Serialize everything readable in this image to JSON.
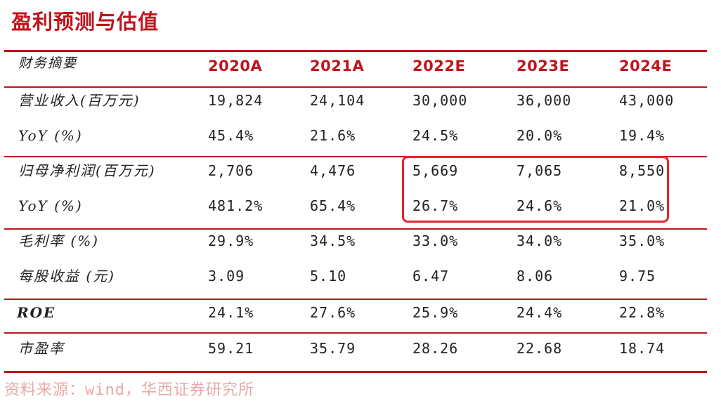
{
  "title": "盈利预测与估值",
  "header": {
    "label": "财务摘要",
    "years": [
      "2020A",
      "2021A",
      "2022E",
      "2023E",
      "2024E"
    ]
  },
  "rows": [
    {
      "label": "营业收入(百万元)",
      "values": [
        "19,824",
        "24,104",
        "30,000",
        "36,000",
        "43,000"
      ]
    },
    {
      "label": "YoY (%)",
      "values": [
        "45.4%",
        "21.6%",
        "24.5%",
        "20.0%",
        "19.4%"
      ]
    },
    {
      "label": "归母净利润(百万元)",
      "values": [
        "2,706",
        "4,476",
        "5,669",
        "7,065",
        "8,550"
      ]
    },
    {
      "label": "YoY (%)",
      "values": [
        "481.2%",
        "65.4%",
        "26.7%",
        "24.6%",
        "21.0%"
      ]
    },
    {
      "label": "毛利率 (%)",
      "values": [
        "29.9%",
        "34.5%",
        "33.0%",
        "34.0%",
        "35.0%"
      ]
    },
    {
      "label": "每股收益 (元)",
      "values": [
        "3.09",
        "5.10",
        "6.47",
        "8.06",
        "9.75"
      ]
    },
    {
      "label": "ROE",
      "values": [
        "24.1%",
        "27.6%",
        "25.9%",
        "24.4%",
        "22.8%"
      ]
    },
    {
      "label": "市盈率",
      "values": [
        "59.21",
        "35.79",
        "28.26",
        "22.68",
        "18.74"
      ]
    }
  ],
  "source": "资料来源：wind，华西证券研究所",
  "colors": {
    "accent": "#c0141c",
    "highlight_border": "#e8262a",
    "source_text": "#e9a8a8"
  }
}
